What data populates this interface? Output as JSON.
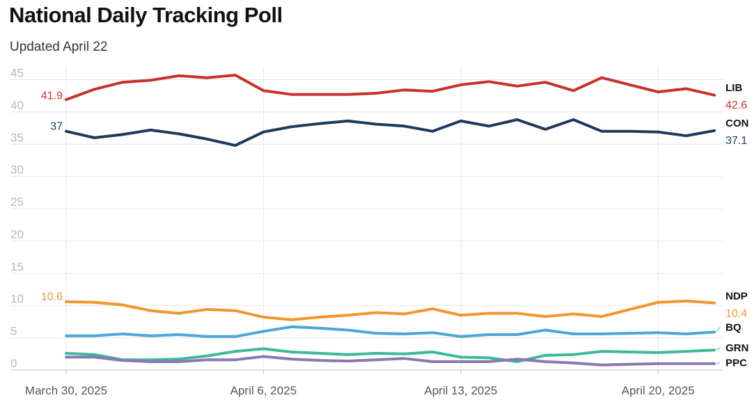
{
  "header": {
    "title": "National Daily Tracking Poll",
    "subtitle": "Updated April 22"
  },
  "chart_data": {
    "type": "line",
    "ylim": [
      0,
      45
    ],
    "y_ticks": [
      0,
      5,
      10,
      15,
      20,
      25,
      30,
      35,
      40,
      45
    ],
    "x_tick_labels": [
      {
        "day": 0,
        "label": "March 30, 2025"
      },
      {
        "day": 7,
        "label": "April 6, 2025"
      },
      {
        "day": 14,
        "label": "April 13, 2025"
      },
      {
        "day": 21,
        "label": "April 20, 2025"
      }
    ],
    "x": [
      "2025-03-30",
      "2025-03-31",
      "2025-04-01",
      "2025-04-02",
      "2025-04-03",
      "2025-04-04",
      "2025-04-05",
      "2025-04-06",
      "2025-04-07",
      "2025-04-08",
      "2025-04-09",
      "2025-04-10",
      "2025-04-11",
      "2025-04-12",
      "2025-04-13",
      "2025-04-14",
      "2025-04-15",
      "2025-04-16",
      "2025-04-17",
      "2025-04-18",
      "2025-04-19",
      "2025-04-20",
      "2025-04-21",
      "2025-04-22"
    ],
    "grid": true,
    "series": [
      {
        "name": "LIB",
        "color": "#c9312c",
        "start_label": "41.9",
        "end_label": "42.6",
        "values": [
          41.9,
          43.5,
          44.6,
          44.9,
          45.6,
          45.3,
          45.7,
          43.3,
          42.7,
          42.7,
          42.7,
          42.9,
          43.4,
          43.2,
          44.2,
          44.7,
          44.0,
          44.6,
          43.3,
          45.3,
          44.2,
          43.1,
          43.6,
          42.6
        ]
      },
      {
        "name": "CON",
        "color": "#1b3a5c",
        "start_label": "37",
        "end_label": "37.1",
        "values": [
          37.0,
          36.0,
          36.5,
          37.2,
          36.6,
          35.8,
          34.8,
          36.9,
          37.7,
          38.2,
          38.6,
          38.1,
          37.8,
          37.0,
          38.6,
          37.8,
          38.8,
          37.3,
          38.8,
          37.0,
          37.0,
          36.9,
          36.3,
          37.1
        ]
      },
      {
        "name": "NDP",
        "color": "#f0962e",
        "start_label": "10.6",
        "end_label": "10.4",
        "values": [
          10.6,
          10.5,
          10.1,
          9.2,
          8.8,
          9.4,
          9.2,
          8.2,
          7.8,
          8.2,
          8.5,
          8.9,
          8.7,
          9.5,
          8.5,
          8.8,
          8.8,
          8.3,
          8.7,
          8.3,
          9.4,
          10.5,
          10.7,
          10.4
        ]
      },
      {
        "name": "BQ",
        "color": "#4ea6d6",
        "start_label": "",
        "end_label": "",
        "values": [
          5.3,
          5.3,
          5.6,
          5.3,
          5.5,
          5.2,
          5.2,
          6.0,
          6.7,
          6.5,
          6.2,
          5.7,
          5.6,
          5.8,
          5.2,
          5.5,
          5.5,
          6.2,
          5.6,
          5.6,
          5.7,
          5.8,
          5.6,
          5.9
        ]
      },
      {
        "name": "GRN",
        "color": "#3db89b",
        "start_label": "",
        "end_label": "",
        "values": [
          2.6,
          2.4,
          1.6,
          1.6,
          1.7,
          2.2,
          2.9,
          3.3,
          2.8,
          2.6,
          2.4,
          2.6,
          2.5,
          2.8,
          2.0,
          1.9,
          1.3,
          2.3,
          2.4,
          2.9,
          2.8,
          2.7,
          2.9,
          3.1
        ]
      },
      {
        "name": "PPC",
        "color": "#8a78b3",
        "start_label": "",
        "end_label": "",
        "values": [
          2.0,
          2.0,
          1.5,
          1.3,
          1.3,
          1.6,
          1.6,
          2.1,
          1.7,
          1.5,
          1.4,
          1.6,
          1.8,
          1.3,
          1.3,
          1.3,
          1.7,
          1.3,
          1.1,
          0.8,
          0.9,
          1.0,
          1.0,
          1.0
        ]
      }
    ]
  }
}
